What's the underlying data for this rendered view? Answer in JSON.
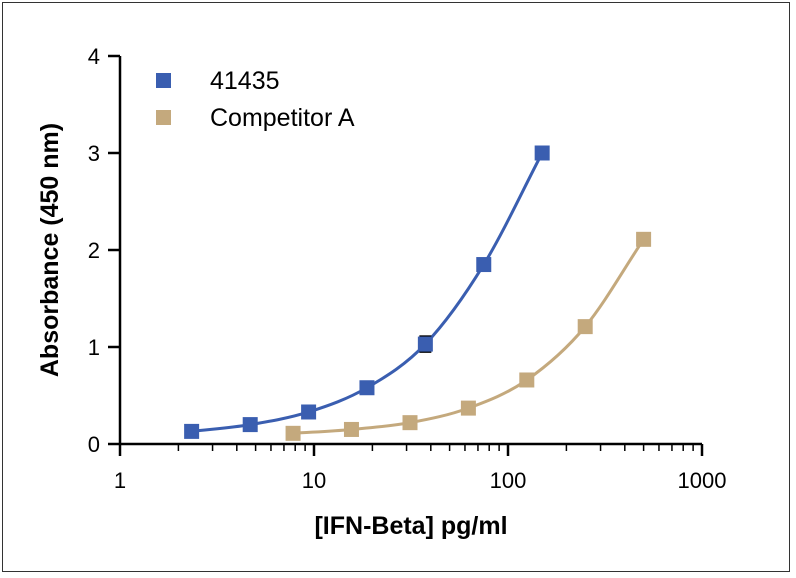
{
  "chart_data": {
    "type": "scatter",
    "xlabel": "[IFN-Beta] pg/ml",
    "ylabel": "Absorbance (450 nm)",
    "x_scale": "log",
    "xlim": [
      1,
      1000
    ],
    "ylim": [
      0,
      4
    ],
    "x_ticks": [
      "1",
      "10",
      "100",
      "1000"
    ],
    "y_ticks": [
      "0",
      "1",
      "2",
      "3",
      "4"
    ],
    "legend_position": "top-left",
    "series": [
      {
        "name": "41435",
        "color": "#3a5eb0",
        "marker": "square",
        "x": [
          2.34,
          4.69,
          9.38,
          18.75,
          37.5,
          75,
          150
        ],
        "y": [
          0.13,
          0.2,
          0.33,
          0.58,
          1.03,
          1.85,
          3.0
        ],
        "error_y": [
          0,
          0,
          0,
          0,
          0.08,
          0,
          0
        ]
      },
      {
        "name": "Competitor A",
        "color": "#c4a97d",
        "marker": "square",
        "x": [
          7.8,
          15.6,
          31.25,
          62.5,
          125,
          250,
          500
        ],
        "y": [
          0.11,
          0.15,
          0.22,
          0.37,
          0.66,
          1.21,
          2.11
        ],
        "error_y": [
          0,
          0,
          0,
          0,
          0,
          0,
          0
        ]
      }
    ]
  }
}
